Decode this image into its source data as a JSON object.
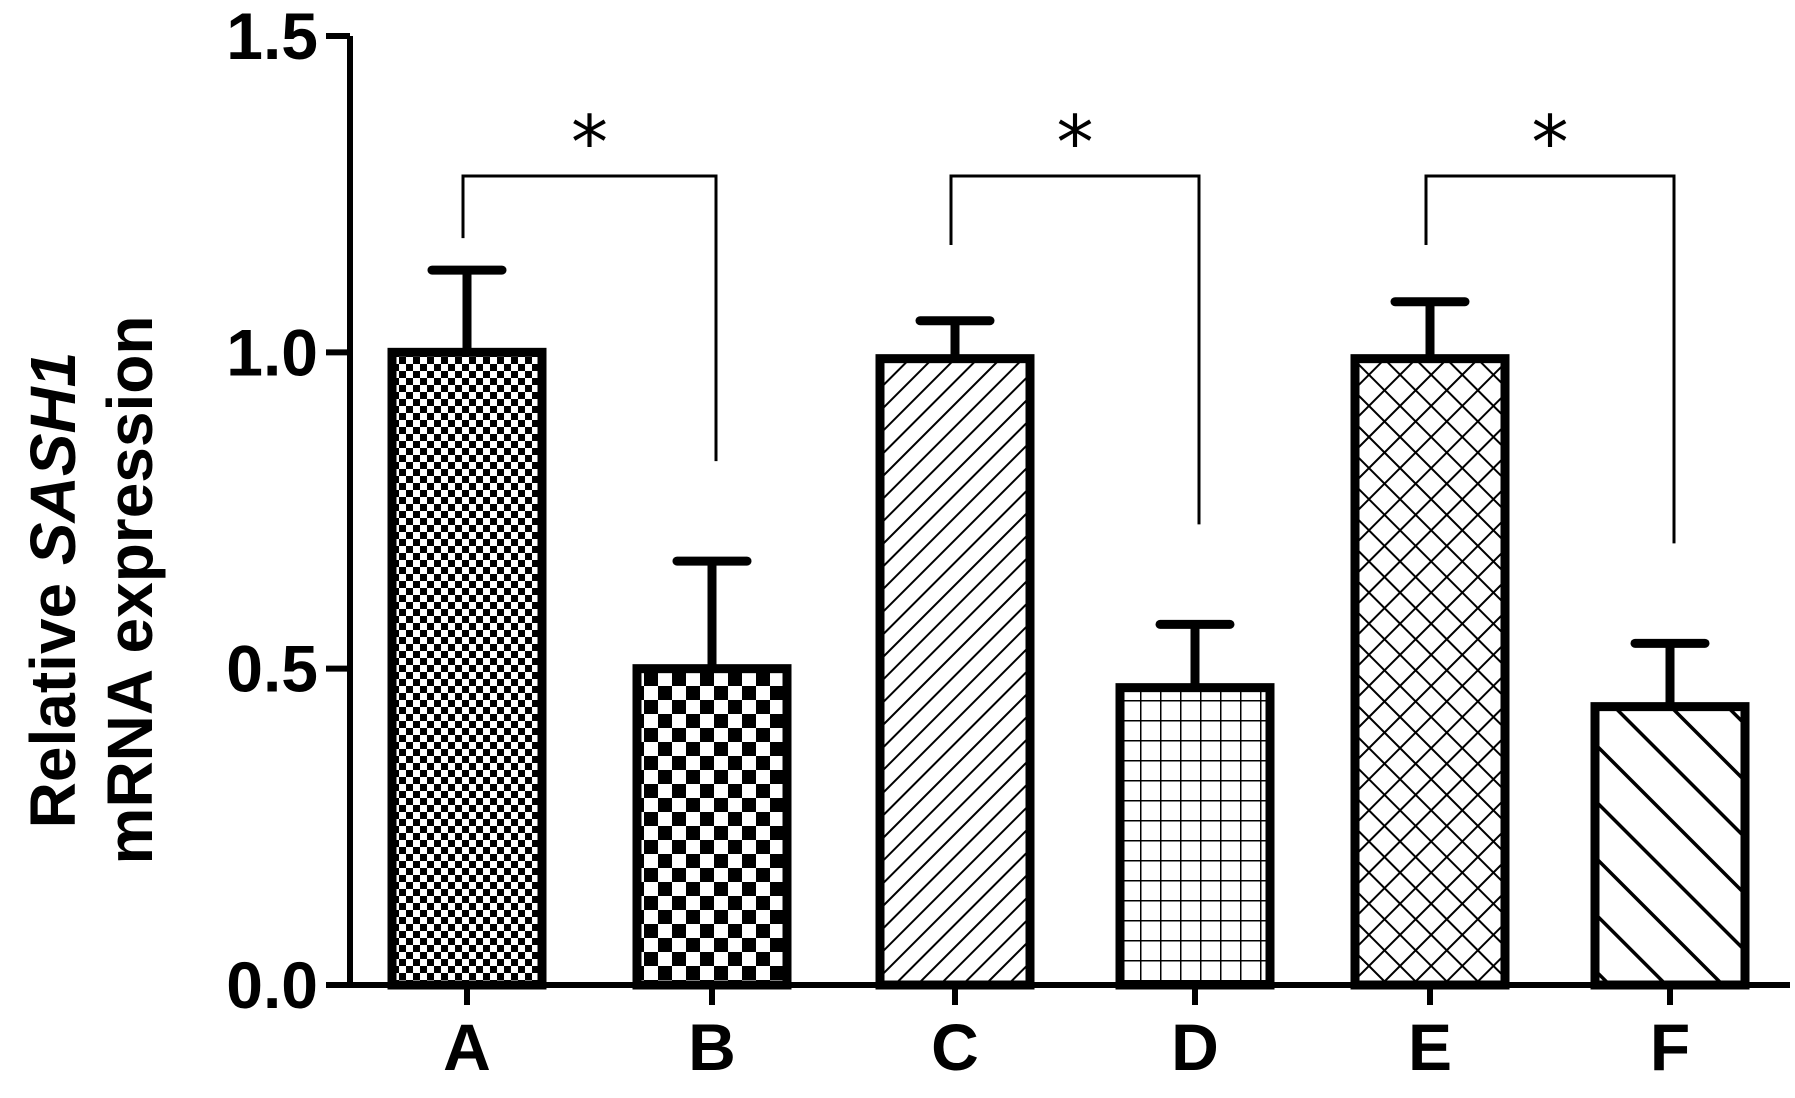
{
  "chart_data": {
    "type": "bar",
    "categories": [
      "A",
      "B",
      "C",
      "D",
      "E",
      "F"
    ],
    "values": [
      1.0,
      0.5,
      0.99,
      0.47,
      0.99,
      0.44
    ],
    "errors": [
      0.13,
      0.17,
      0.06,
      0.1,
      0.09,
      0.1
    ],
    "patterns": [
      "fine-checker",
      "coarse-checker",
      "diagonal-fine",
      "grid",
      "crosshatch",
      "diagonal-wide"
    ],
    "ylabel_line1_prefix": "Relative ",
    "ylabel_line1_italic": "SASH1",
    "ylabel_line2": "mRNA expression",
    "xlabel": "",
    "ylim": [
      0,
      1.5
    ],
    "yticks": [
      "0.0",
      "0.5",
      "1.0",
      "1.5"
    ],
    "grid": false,
    "significance": [
      {
        "from": "A",
        "to": "B",
        "label": "*"
      },
      {
        "from": "C",
        "to": "D",
        "label": "*"
      },
      {
        "from": "E",
        "to": "F",
        "label": "*"
      }
    ],
    "colors": {
      "stroke": "#000000",
      "fill": "#ffffff"
    }
  }
}
